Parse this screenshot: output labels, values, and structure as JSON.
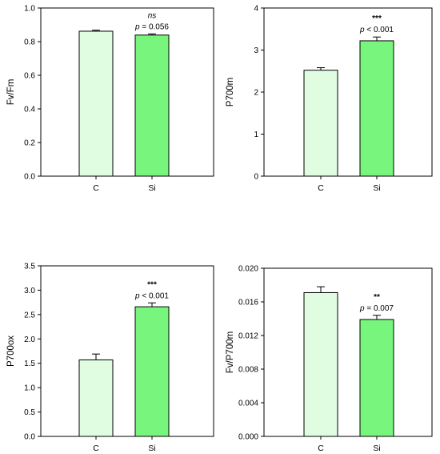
{
  "chart_data": [
    {
      "type": "bar",
      "categories": [
        "C",
        "Si"
      ],
      "values": [
        0.862,
        0.839
      ],
      "errors": [
        0.006,
        0.007
      ],
      "ylabel": "Fv/Fm",
      "ylim": [
        0,
        1.0
      ],
      "yticks": [
        "0.0",
        "0.2",
        "0.4",
        "0.6",
        "0.8",
        "1.0"
      ],
      "yticks_values": [
        0,
        0.2,
        0.4,
        0.6,
        0.8,
        1.0
      ],
      "annotation_sig": "ns",
      "annotation_p_symbol": "p",
      "annotation_p_text": " = 0.056",
      "bar_colors": [
        "#e0fde2",
        "#77f57c"
      ]
    },
    {
      "type": "bar",
      "categories": [
        "C",
        "Si"
      ],
      "values": [
        2.52,
        3.22
      ],
      "errors": [
        0.06,
        0.09
      ],
      "ylabel": "P700m",
      "ylim": [
        0,
        4
      ],
      "yticks": [
        "0",
        "1",
        "2",
        "3",
        "4"
      ],
      "yticks_values": [
        0,
        1,
        2,
        3,
        4
      ],
      "annotation_sig": "***",
      "annotation_p_symbol": "p",
      "annotation_p_text": " < 0.001",
      "bar_colors": [
        "#e0fde2",
        "#77f57c"
      ]
    },
    {
      "type": "bar",
      "categories": [
        "C",
        "Si"
      ],
      "values": [
        1.57,
        2.66
      ],
      "errors": [
        0.12,
        0.08
      ],
      "ylabel": "P700ox",
      "ylim": [
        0,
        3.5
      ],
      "yticks": [
        "0.0",
        "0.5",
        "1.0",
        "1.5",
        "2.0",
        "2.5",
        "3.0",
        "3.5"
      ],
      "yticks_values": [
        0,
        0.5,
        1.0,
        1.5,
        2.0,
        2.5,
        3.0,
        3.5
      ],
      "annotation_sig": "***",
      "annotation_p_symbol": "p",
      "annotation_p_text": " < 0.001",
      "bar_colors": [
        "#e0fde2",
        "#77f57c"
      ]
    },
    {
      "type": "bar",
      "categories": [
        "C",
        "Si"
      ],
      "values": [
        0.0171,
        0.0139
      ],
      "errors": [
        0.0007,
        0.0005
      ],
      "ylabel": "Fv/P700m",
      "ylim": [
        0,
        0.02
      ],
      "yticks": [
        "0.000",
        "0.004",
        "0.008",
        "0.012",
        "0.016",
        "0.020"
      ],
      "yticks_values": [
        0,
        0.004,
        0.008,
        0.012,
        0.016,
        0.02
      ],
      "annotation_sig": "**",
      "annotation_p_symbol": "p",
      "annotation_p_text": " = 0.007",
      "bar_colors": [
        "#e0fde2",
        "#77f57c"
      ]
    }
  ]
}
